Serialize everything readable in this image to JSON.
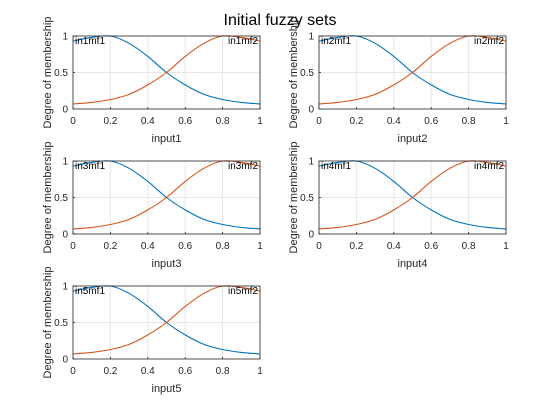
{
  "figure": {
    "title": "Initial fuzzy sets"
  },
  "style": {
    "background": "#ffffff",
    "axis_color": "#262626",
    "grid_color": "#e6e6e6",
    "mf1_color": "#0072bd",
    "mf2_color": "#d95319"
  },
  "chart_data": [
    {
      "type": "line",
      "xlabel": "input1",
      "ylabel": "Degree of membership",
      "xlim": [
        0,
        1
      ],
      "ylim": [
        0,
        1
      ],
      "xticks": [
        "0",
        "0.2",
        "0.4",
        "0.6",
        "0.8",
        "1"
      ],
      "yticks": [
        "0",
        "0.5",
        "1"
      ],
      "grid": true,
      "series": [
        {
          "name": "in1mf1",
          "x": [
            0,
            0.1,
            0.2,
            0.3,
            0.4,
            0.5,
            0.6,
            0.7,
            0.8,
            0.9,
            1.0
          ],
          "y": [
            0.93,
            0.98,
            1.0,
            0.9,
            0.72,
            0.5,
            0.33,
            0.2,
            0.13,
            0.09,
            0.07
          ]
        },
        {
          "name": "in1mf2",
          "x": [
            0,
            0.1,
            0.2,
            0.3,
            0.4,
            0.5,
            0.6,
            0.7,
            0.8,
            0.9,
            1.0
          ],
          "y": [
            0.07,
            0.09,
            0.13,
            0.2,
            0.33,
            0.5,
            0.72,
            0.9,
            1.0,
            0.98,
            0.93
          ]
        }
      ]
    },
    {
      "type": "line",
      "xlabel": "input2",
      "ylabel": "Degree of membership",
      "xlim": [
        0,
        1
      ],
      "ylim": [
        0,
        1
      ],
      "xticks": [
        "0",
        "0.2",
        "0.4",
        "0.6",
        "0.8",
        "1"
      ],
      "yticks": [
        "0",
        "0.5",
        "1"
      ],
      "grid": true,
      "series": [
        {
          "name": "in2mf1",
          "x": [
            0,
            0.1,
            0.2,
            0.3,
            0.4,
            0.5,
            0.6,
            0.7,
            0.8,
            0.9,
            1.0
          ],
          "y": [
            0.93,
            0.98,
            1.0,
            0.9,
            0.72,
            0.5,
            0.33,
            0.2,
            0.13,
            0.09,
            0.07
          ]
        },
        {
          "name": "in2mf2",
          "x": [
            0,
            0.1,
            0.2,
            0.3,
            0.4,
            0.5,
            0.6,
            0.7,
            0.8,
            0.9,
            1.0
          ],
          "y": [
            0.07,
            0.09,
            0.13,
            0.2,
            0.33,
            0.5,
            0.72,
            0.9,
            1.0,
            0.98,
            0.93
          ]
        }
      ]
    },
    {
      "type": "line",
      "xlabel": "input3",
      "ylabel": "Degree of membership",
      "xlim": [
        0,
        1
      ],
      "ylim": [
        0,
        1
      ],
      "xticks": [
        "0",
        "0.2",
        "0.4",
        "0.6",
        "0.8",
        "1"
      ],
      "yticks": [
        "0",
        "0.5",
        "1"
      ],
      "grid": true,
      "series": [
        {
          "name": "in3mf1",
          "x": [
            0,
            0.1,
            0.2,
            0.3,
            0.4,
            0.5,
            0.6,
            0.7,
            0.8,
            0.9,
            1.0
          ],
          "y": [
            0.93,
            0.98,
            1.0,
            0.9,
            0.72,
            0.5,
            0.33,
            0.2,
            0.13,
            0.09,
            0.07
          ]
        },
        {
          "name": "in3mf2",
          "x": [
            0,
            0.1,
            0.2,
            0.3,
            0.4,
            0.5,
            0.6,
            0.7,
            0.8,
            0.9,
            1.0
          ],
          "y": [
            0.07,
            0.09,
            0.13,
            0.2,
            0.33,
            0.5,
            0.72,
            0.9,
            1.0,
            0.98,
            0.93
          ]
        }
      ]
    },
    {
      "type": "line",
      "xlabel": "input4",
      "ylabel": "Degree of membership",
      "xlim": [
        0,
        1
      ],
      "ylim": [
        0,
        1
      ],
      "xticks": [
        "0",
        "0.2",
        "0.4",
        "0.6",
        "0.8",
        "1"
      ],
      "yticks": [
        "0",
        "0.5",
        "1"
      ],
      "grid": true,
      "series": [
        {
          "name": "in4mf1",
          "x": [
            0,
            0.1,
            0.2,
            0.3,
            0.4,
            0.5,
            0.6,
            0.7,
            0.8,
            0.9,
            1.0
          ],
          "y": [
            0.93,
            0.98,
            1.0,
            0.9,
            0.72,
            0.5,
            0.33,
            0.2,
            0.13,
            0.09,
            0.07
          ]
        },
        {
          "name": "in4mf2",
          "x": [
            0,
            0.1,
            0.2,
            0.3,
            0.4,
            0.5,
            0.6,
            0.7,
            0.8,
            0.9,
            1.0
          ],
          "y": [
            0.07,
            0.09,
            0.13,
            0.2,
            0.33,
            0.5,
            0.72,
            0.9,
            1.0,
            0.98,
            0.93
          ]
        }
      ]
    },
    {
      "type": "line",
      "xlabel": "input5",
      "ylabel": "Degree of membership",
      "xlim": [
        0,
        1
      ],
      "ylim": [
        0,
        1
      ],
      "xticks": [
        "0",
        "0.2",
        "0.4",
        "0.6",
        "0.8",
        "1"
      ],
      "yticks": [
        "0",
        "0.5",
        "1"
      ],
      "grid": true,
      "series": [
        {
          "name": "in5mf1",
          "x": [
            0,
            0.1,
            0.2,
            0.3,
            0.4,
            0.5,
            0.6,
            0.7,
            0.8,
            0.9,
            1.0
          ],
          "y": [
            0.93,
            0.98,
            1.0,
            0.9,
            0.72,
            0.5,
            0.33,
            0.2,
            0.13,
            0.09,
            0.07
          ]
        },
        {
          "name": "in5mf2",
          "x": [
            0,
            0.1,
            0.2,
            0.3,
            0.4,
            0.5,
            0.6,
            0.7,
            0.8,
            0.9,
            1.0
          ],
          "y": [
            0.07,
            0.09,
            0.13,
            0.2,
            0.33,
            0.5,
            0.72,
            0.9,
            1.0,
            0.98,
            0.93
          ]
        }
      ]
    }
  ]
}
